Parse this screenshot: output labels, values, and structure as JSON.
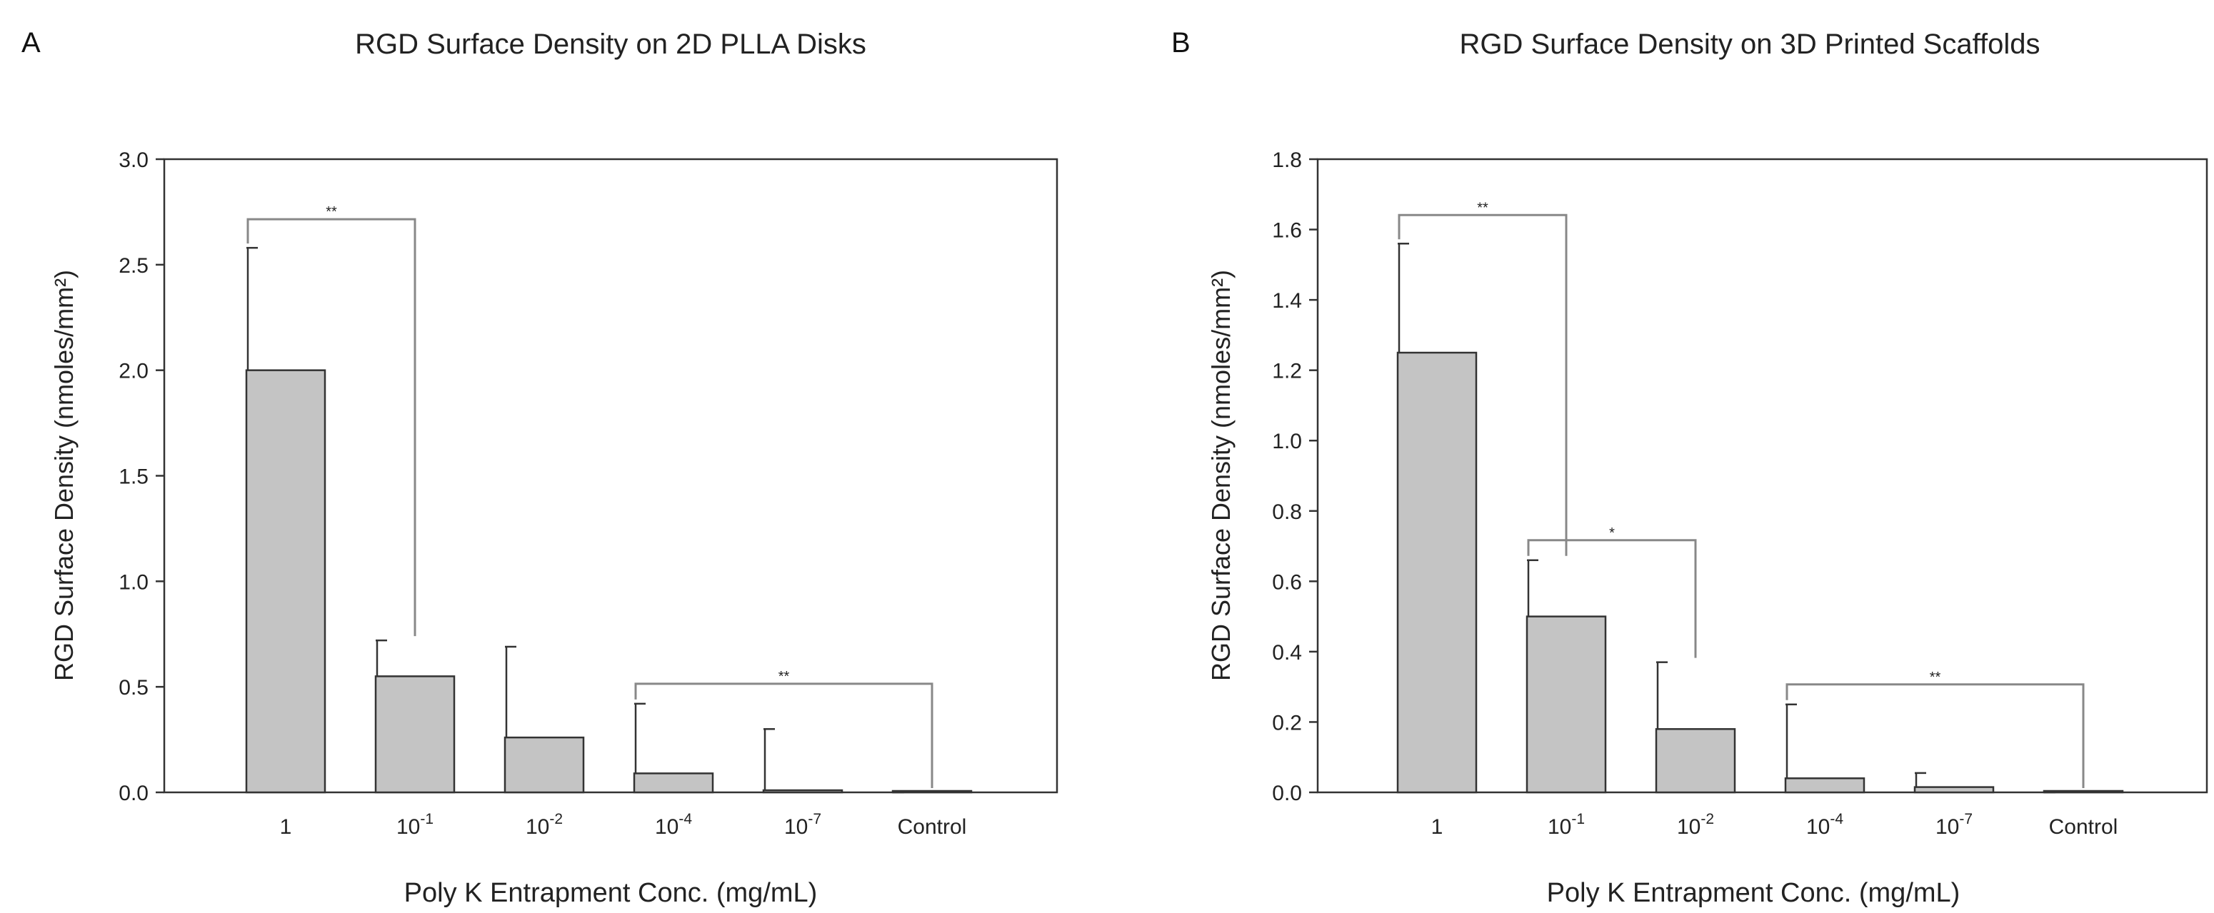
{
  "chart_data": [
    {
      "panel": "A",
      "type": "bar",
      "title": "RGD Surface Density on 2D PLLA Disks",
      "xlabel": "Poly K Entrapment Conc. (mg/mL)",
      "ylabel": "RGD Surface Density (nmoles/mm²)",
      "ylim": [
        0,
        3.0
      ],
      "yticks": [
        "0.0",
        "0.5",
        "1.0",
        "1.5",
        "2.0",
        "2.5",
        "3.0"
      ],
      "categories": [
        {
          "base": "1",
          "exp": ""
        },
        {
          "base": "10",
          "exp": "-1"
        },
        {
          "base": "10",
          "exp": "-2"
        },
        {
          "base": "10",
          "exp": "-4"
        },
        {
          "base": "10",
          "exp": "-7"
        },
        {
          "base": "Control",
          "exp": ""
        }
      ],
      "values": [
        2.0,
        0.55,
        0.26,
        0.09,
        0.01,
        0.0
      ],
      "errors": [
        0.58,
        0.17,
        0.43,
        0.33,
        0.29,
        0.0
      ],
      "significance": [
        {
          "from": 0,
          "to": 1,
          "label": "**"
        },
        {
          "from": 3,
          "to": 5,
          "label": "**"
        }
      ]
    },
    {
      "panel": "B",
      "type": "bar",
      "title": "RGD Surface Density on 3D Printed Scaffolds",
      "xlabel": "Poly K Entrapment Conc. (mg/mL)",
      "ylabel": "RGD Surface Density (nmoles/mm²)",
      "ylim": [
        0,
        1.8
      ],
      "yticks": [
        "0.0",
        "0.2",
        "0.4",
        "0.6",
        "0.8",
        "1.0",
        "1.2",
        "1.4",
        "1.6",
        "1.8"
      ],
      "categories": [
        {
          "base": "1",
          "exp": ""
        },
        {
          "base": "10",
          "exp": "-1"
        },
        {
          "base": "10",
          "exp": "-2"
        },
        {
          "base": "10",
          "exp": "-4"
        },
        {
          "base": "10",
          "exp": "-7"
        },
        {
          "base": "Control",
          "exp": ""
        }
      ],
      "values": [
        1.25,
        0.5,
        0.18,
        0.04,
        0.015,
        0.0
      ],
      "errors": [
        0.31,
        0.16,
        0.19,
        0.21,
        0.04,
        0.0
      ],
      "significance": [
        {
          "from": 0,
          "to": 1,
          "label": "**"
        },
        {
          "from": 1,
          "to": 2,
          "label": "*"
        },
        {
          "from": 3,
          "to": 5,
          "label": "**"
        }
      ]
    }
  ],
  "colors": {
    "bar_fill": "#c4c4c4",
    "bar_stroke": "#333333",
    "axis": "#333333",
    "bracket": "#888888"
  }
}
